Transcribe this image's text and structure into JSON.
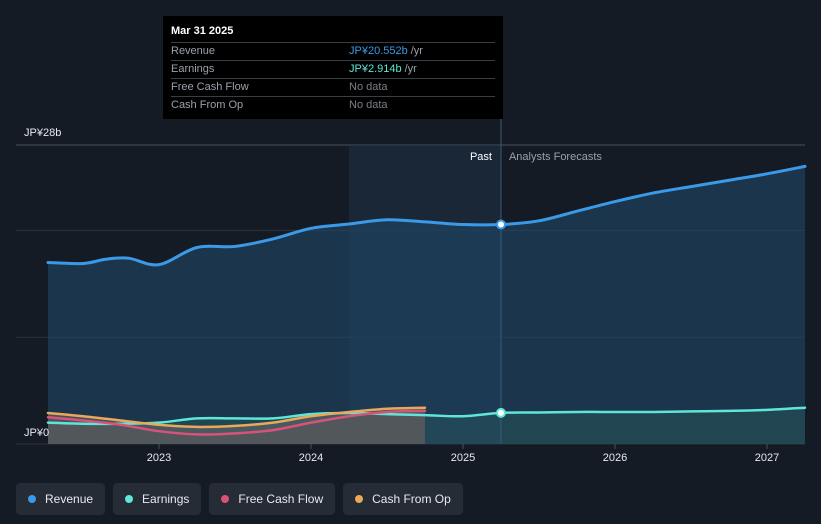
{
  "chart_data": {
    "type": "area",
    "y_axis_labels": {
      "top": "JP¥28b",
      "bottom": "JP¥0"
    },
    "ylim": [
      0,
      28
    ],
    "xlim": [
      2022.27,
      2027.25
    ],
    "x_ticks": [
      2023,
      2024,
      2025,
      2026,
      2027
    ],
    "divider_x": 2025.25,
    "past_label": "Past",
    "forecast_label": "Analysts Forecasts",
    "series": [
      {
        "name": "Revenue",
        "color": "#3b9ae8",
        "x": [
          2022.27,
          2022.5,
          2022.65,
          2022.8,
          2023.0,
          2023.25,
          2023.5,
          2023.75,
          2024.0,
          2024.25,
          2024.5,
          2024.75,
          2025.0,
          2025.25,
          2025.5,
          2025.75,
          2026.0,
          2026.25,
          2026.5,
          2026.75,
          2027.0,
          2027.25
        ],
        "y": [
          17.0,
          16.9,
          17.3,
          17.4,
          16.8,
          18.4,
          18.5,
          19.2,
          20.2,
          20.6,
          21.0,
          20.8,
          20.55,
          20.552,
          20.9,
          21.8,
          22.7,
          23.5,
          24.1,
          24.7,
          25.3,
          26.0
        ]
      },
      {
        "name": "Earnings",
        "color": "#5ee6d8",
        "x": [
          2022.27,
          2022.5,
          2022.75,
          2023.0,
          2023.25,
          2023.5,
          2023.75,
          2024.0,
          2024.25,
          2024.5,
          2024.75,
          2025.0,
          2025.25,
          2025.5,
          2025.75,
          2026.0,
          2026.25,
          2026.5,
          2026.75,
          2027.0,
          2027.25
        ],
        "y": [
          2.0,
          1.9,
          1.9,
          2.0,
          2.4,
          2.4,
          2.4,
          2.8,
          2.9,
          2.8,
          2.7,
          2.6,
          2.914,
          2.95,
          3.0,
          3.0,
          3.0,
          3.05,
          3.1,
          3.2,
          3.4
        ]
      },
      {
        "name": "Free Cash Flow",
        "color": "#d9527a",
        "x": [
          2022.27,
          2022.5,
          2022.75,
          2023.0,
          2023.25,
          2023.5,
          2023.75,
          2024.0,
          2024.25,
          2024.5,
          2024.75
        ],
        "y": [
          2.5,
          2.2,
          1.8,
          1.2,
          0.9,
          1.0,
          1.3,
          2.0,
          2.6,
          3.0,
          3.1
        ]
      },
      {
        "name": "Cash From Op",
        "color": "#e9a85a",
        "x": [
          2022.27,
          2022.5,
          2022.75,
          2023.0,
          2023.25,
          2023.5,
          2023.75,
          2024.0,
          2024.25,
          2024.5,
          2024.75
        ],
        "y": [
          2.9,
          2.6,
          2.2,
          1.8,
          1.6,
          1.7,
          2.0,
          2.6,
          3.0,
          3.3,
          3.4
        ]
      }
    ]
  },
  "tooltip": {
    "date": "Mar 31 2025",
    "rows": [
      {
        "label": "Revenue",
        "value": "JP¥20.552b",
        "unit": "/yr",
        "color": "#3b9ae8"
      },
      {
        "label": "Earnings",
        "value": "JP¥2.914b",
        "unit": "/yr",
        "color": "#5ee6d8"
      },
      {
        "label": "Free Cash Flow",
        "value": "No data",
        "unit": "",
        "color": "#7a7f87"
      },
      {
        "label": "Cash From Op",
        "value": "No data",
        "unit": "",
        "color": "#7a7f87"
      }
    ]
  },
  "legend": [
    {
      "label": "Revenue",
      "color": "#3b9ae8"
    },
    {
      "label": "Earnings",
      "color": "#5ee6d8"
    },
    {
      "label": "Free Cash Flow",
      "color": "#d9527a"
    },
    {
      "label": "Cash From Op",
      "color": "#e9a85a"
    }
  ]
}
